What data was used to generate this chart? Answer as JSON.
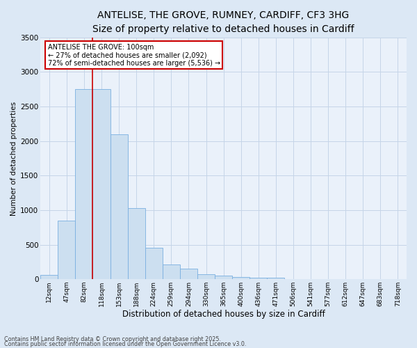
{
  "title_line1": "ANTELISE, THE GROVE, RUMNEY, CARDIFF, CF3 3HG",
  "title_line2": "Size of property relative to detached houses in Cardiff",
  "xlabel": "Distribution of detached houses by size in Cardiff",
  "ylabel": "Number of detached properties",
  "categories": [
    "12sqm",
    "47sqm",
    "82sqm",
    "118sqm",
    "153sqm",
    "188sqm",
    "224sqm",
    "259sqm",
    "294sqm",
    "330sqm",
    "365sqm",
    "400sqm",
    "436sqm",
    "471sqm",
    "506sqm",
    "541sqm",
    "577sqm",
    "612sqm",
    "647sqm",
    "683sqm",
    "718sqm"
  ],
  "values": [
    60,
    850,
    2750,
    2750,
    2100,
    1030,
    460,
    210,
    155,
    75,
    55,
    35,
    25,
    18,
    5,
    5,
    3,
    3,
    2,
    2,
    1
  ],
  "bar_color": "#ccdff0",
  "bar_edge_color": "#7aafe0",
  "red_line_index": 2.5,
  "ylim": [
    0,
    3500
  ],
  "annotation_title": "ANTELISE THE GROVE: 100sqm",
  "annotation_line1": "← 27% of detached houses are smaller (2,092)",
  "annotation_line2": "72% of semi-detached houses are larger (5,536) →",
  "annotation_box_facecolor": "#ffffff",
  "annotation_box_edgecolor": "#cc0000",
  "footer_line1": "Contains HM Land Registry data © Crown copyright and database right 2025.",
  "footer_line2": "Contains public sector information licensed under the Open Government Licence v3.0.",
  "fig_facecolor": "#dce8f5",
  "plot_facecolor": "#eaf1fa",
  "grid_color": "#c5d5e8",
  "title_fontsize": 10,
  "subtitle_fontsize": 9
}
